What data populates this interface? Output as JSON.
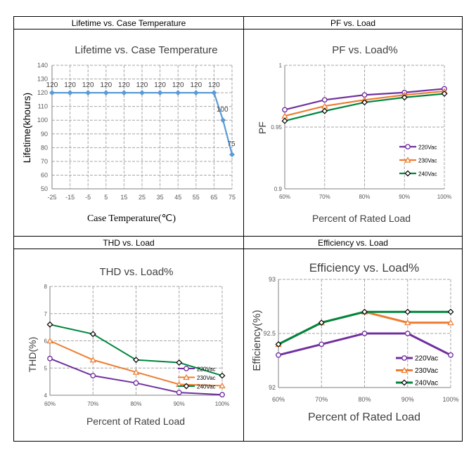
{
  "headers": {
    "lifetime": "Lifetime vs. Case Temperature",
    "pf": "PF vs. Load",
    "thd": "THD vs. Load",
    "eff": "Efficiency vs. Load"
  },
  "colors": {
    "lifetime_line": "#5b9bd5",
    "s220": "#7030a0",
    "s230": "#ed7d31",
    "s240": "#00863e",
    "grid": "#a6a6a6",
    "border": "#000000"
  },
  "chart_data": [
    {
      "id": "lifetime",
      "type": "line",
      "title": "Lifetime vs. Case Temperature",
      "xlabel": "Case Temperature(℃)",
      "ylabel": "Lifetime(khours)",
      "x_ticks": [
        "-25",
        "-15",
        "-5",
        "5",
        "15",
        "25",
        "35",
        "45",
        "55",
        "65",
        "75"
      ],
      "y_ticks": [
        "50",
        "60",
        "70",
        "80",
        "90",
        "100",
        "110",
        "120",
        "130",
        "140"
      ],
      "xlim": [
        -25,
        75
      ],
      "ylim": [
        50,
        140
      ],
      "grid": true,
      "series": [
        {
          "name": "Lifetime",
          "x": [
            -25,
            -15,
            -5,
            5,
            15,
            25,
            35,
            45,
            55,
            65,
            70,
            75
          ],
          "y": [
            120,
            120,
            120,
            120,
            120,
            120,
            120,
            120,
            120,
            120,
            100,
            75
          ]
        }
      ],
      "data_labels": [
        "120",
        "120",
        "120",
        "120",
        "120",
        "120",
        "120",
        "120",
        "120",
        "120",
        "100",
        "75"
      ]
    },
    {
      "id": "pf",
      "type": "line",
      "title": "PF vs. Load%",
      "xlabel": "Percent of Rated Load",
      "ylabel": "PF",
      "categories": [
        "60%",
        "70%",
        "80%",
        "90%",
        "100%"
      ],
      "y_ticks": [
        "0.9",
        "0.95",
        "1"
      ],
      "ylim": [
        0.9,
        1.0
      ],
      "grid": true,
      "legend_position": "bottom-right",
      "series": [
        {
          "name": "220Vac",
          "values": [
            0.964,
            0.972,
            0.976,
            0.978,
            0.981
          ]
        },
        {
          "name": "230Vac",
          "values": [
            0.959,
            0.967,
            0.972,
            0.976,
            0.979
          ]
        },
        {
          "name": "240Vac",
          "values": [
            0.955,
            0.963,
            0.97,
            0.974,
            0.977
          ]
        }
      ]
    },
    {
      "id": "thd",
      "type": "line",
      "title": "THD vs. Load%",
      "xlabel": "Percent of Rated Load",
      "ylabel": "THD(%)",
      "categories": [
        "60%",
        "70%",
        "80%",
        "90%",
        "100%"
      ],
      "y_ticks": [
        "4",
        "5",
        "6",
        "7",
        "8"
      ],
      "ylim": [
        4,
        8
      ],
      "grid": true,
      "legend_position": "bottom-right",
      "series": [
        {
          "name": "220Vac",
          "values": [
            5.35,
            4.72,
            4.45,
            4.1,
            4.02
          ]
        },
        {
          "name": "230Vac",
          "values": [
            6.0,
            5.3,
            4.85,
            4.4,
            4.35
          ]
        },
        {
          "name": "240Vac",
          "values": [
            6.6,
            6.25,
            5.3,
            5.2,
            4.72
          ]
        }
      ]
    },
    {
      "id": "eff",
      "type": "line",
      "title": "Efficiency vs. Load%",
      "xlabel": "Percent of Rated Load",
      "ylabel": "Efficiency(%)",
      "categories": [
        "60%",
        "70%",
        "80%",
        "90%",
        "100%"
      ],
      "y_ticks": [
        "92",
        "92.5",
        "93"
      ],
      "ylim": [
        92,
        93
      ],
      "grid": true,
      "legend_position": "bottom-right",
      "series": [
        {
          "name": "220Vac",
          "values": [
            92.3,
            92.4,
            92.5,
            92.5,
            92.3
          ]
        },
        {
          "name": "230Vac",
          "values": [
            92.4,
            92.6,
            92.7,
            92.6,
            92.6
          ]
        },
        {
          "name": "240Vac",
          "values": [
            92.4,
            92.6,
            92.7,
            92.7,
            92.7
          ]
        }
      ]
    }
  ]
}
